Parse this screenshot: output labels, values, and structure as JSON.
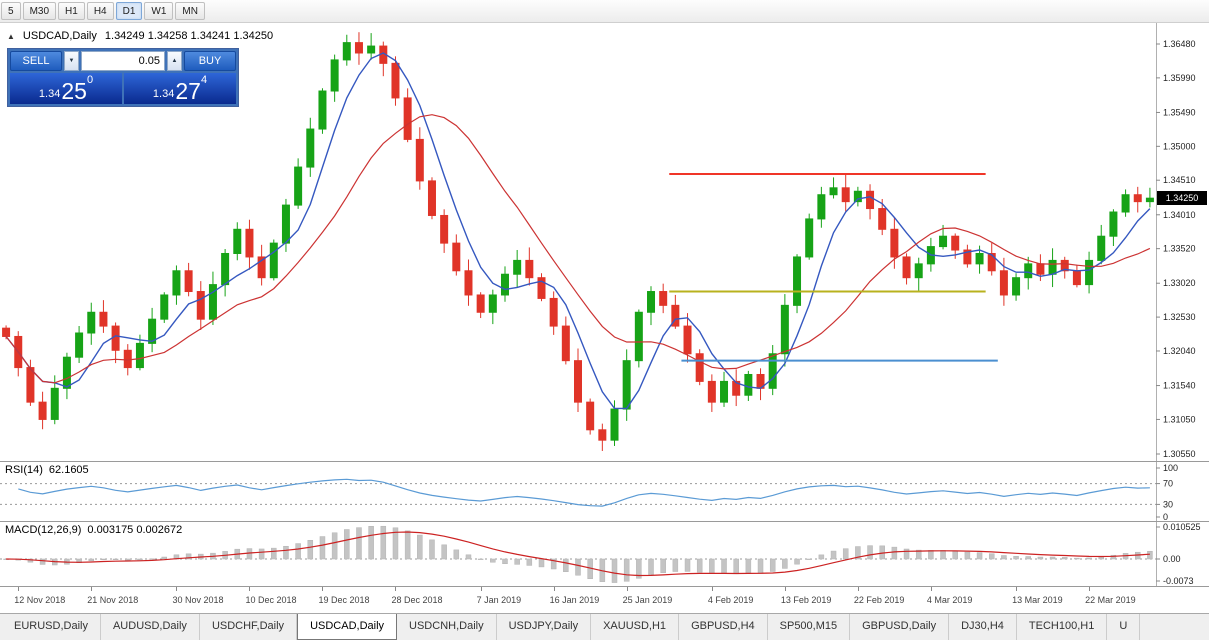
{
  "toolbar": {
    "timeframes": [
      "5",
      "M30",
      "H1",
      "H4",
      "D1",
      "W1",
      "MN"
    ],
    "active_timeframe": "D1"
  },
  "icons": {
    "panel_toggle": "▲",
    "spinner_down": "▼",
    "spinner_up": "▲"
  },
  "symbol_header": {
    "title": "USDCAD,Daily",
    "ohlc": "1.34249 1.34258 1.34241 1.34250"
  },
  "trade_panel": {
    "sell_label": "SELL",
    "buy_label": "BUY",
    "volume": "0.05",
    "sell_price": {
      "prefix": "1.34",
      "pips": "25",
      "pipette": "0"
    },
    "buy_price": {
      "prefix": "1.34",
      "pips": "27",
      "pipette": "4"
    }
  },
  "price_axis": {
    "labels": [
      "1.36480",
      "1.35990",
      "1.35490",
      "1.35000",
      "1.34510",
      "1.34010",
      "1.33520",
      "1.33020",
      "1.32530",
      "1.32040",
      "1.31540",
      "1.31050",
      "1.30550"
    ],
    "current_price": "1.34250"
  },
  "rsi_panel": {
    "name": "RSI(14)",
    "value": "62.1605",
    "axis": [
      "100",
      "70",
      "30",
      "0"
    ]
  },
  "macd_panel": {
    "name": "MACD(12,26,9)",
    "value": "0.003175 0.002672",
    "axis": [
      "0.010525",
      "0.00",
      "-0.0073"
    ]
  },
  "tabs": {
    "active": "USDCAD,Daily",
    "items": [
      "EURUSD,Daily",
      "AUDUSD,Daily",
      "USDCHF,Daily",
      "USDCAD,Daily",
      "USDCNH,Daily",
      "USDJPY,Daily",
      "XAUUSD,H1",
      "GBPUSD,H4",
      "SP500,M15",
      "GBPUSD,Daily",
      "DJ30,H4",
      "TECH100,H1",
      "U"
    ]
  },
  "colors": {
    "candle_up": "#17a317",
    "candle_down": "#e03428",
    "ma_fast": "#3558c0",
    "ma_slow": "#cc3333",
    "rsi_line": "#5b9bd5",
    "macd_histogram": "#c4c4c4",
    "macd_signal": "#cc2222",
    "price_tag_bg": "#000000",
    "axis_text": "#222222"
  },
  "chart_data": {
    "type": "candlestick",
    "symbol": "USDCAD",
    "timeframe": "Daily",
    "bars": 95,
    "price_range": [
      1.3055,
      1.3648
    ],
    "dates": [
      "12 Nov 2018",
      "21 Nov 2018",
      "30 Nov 2018",
      "10 Dec 2018",
      "19 Dec 2018",
      "28 Dec 2018",
      "7 Jan 2019",
      "16 Jan 2019",
      "25 Jan 2019",
      "4 Feb 2019",
      "13 Feb 2019",
      "22 Feb 2019",
      "4 Mar 2019",
      "13 Mar 2019",
      "22 Mar 2019"
    ],
    "closes": [
      1.3225,
      1.318,
      1.313,
      1.3105,
      1.315,
      1.3195,
      1.323,
      1.326,
      1.324,
      1.3205,
      1.318,
      1.3215,
      1.325,
      1.3285,
      1.332,
      1.329,
      1.325,
      1.33,
      1.3345,
      1.338,
      1.334,
      1.331,
      1.336,
      1.3415,
      1.347,
      1.3525,
      1.358,
      1.3625,
      1.365,
      1.3635,
      1.3645,
      1.362,
      1.357,
      1.351,
      1.345,
      1.34,
      1.336,
      1.332,
      1.3285,
      1.326,
      1.3285,
      1.3315,
      1.3335,
      1.331,
      1.328,
      1.324,
      1.319,
      1.313,
      1.309,
      1.3075,
      1.312,
      1.319,
      1.326,
      1.329,
      1.327,
      1.324,
      1.32,
      1.316,
      1.313,
      1.316,
      1.314,
      1.317,
      1.315,
      1.32,
      1.327,
      1.334,
      1.3395,
      1.343,
      1.344,
      1.342,
      1.3435,
      1.341,
      1.338,
      1.334,
      1.331,
      1.333,
      1.3355,
      1.337,
      1.335,
      1.333,
      1.3345,
      1.332,
      1.3285,
      1.331,
      1.333,
      1.3315,
      1.3335,
      1.332,
      1.33,
      1.3335,
      1.337,
      1.3405,
      1.343,
      1.342,
      1.3425
    ],
    "moving_averages": [
      {
        "name": "MA fast",
        "period": 5,
        "color_key": "ma_fast"
      },
      {
        "name": "MA slow",
        "period": 13,
        "color_key": "ma_slow"
      }
    ],
    "hlines": [
      {
        "price": 1.346,
        "color": "#f03528",
        "from_bar": 55,
        "to_bar": 81
      },
      {
        "price": 1.329,
        "color": "#b8b21e",
        "from_bar": 55,
        "to_bar": 81
      },
      {
        "price": 1.319,
        "color": "#4a8fd0",
        "from_bar": 56,
        "to_bar": 82
      }
    ],
    "indicators": {
      "rsi": {
        "period": 14,
        "current": 62.1605,
        "levels": [
          30,
          70
        ]
      },
      "macd": {
        "fast": 12,
        "slow": 26,
        "signal": 9,
        "current_macd": 0.003175,
        "current_signal": 0.002672,
        "range": [
          -0.0073,
          0.010525
        ]
      }
    }
  }
}
